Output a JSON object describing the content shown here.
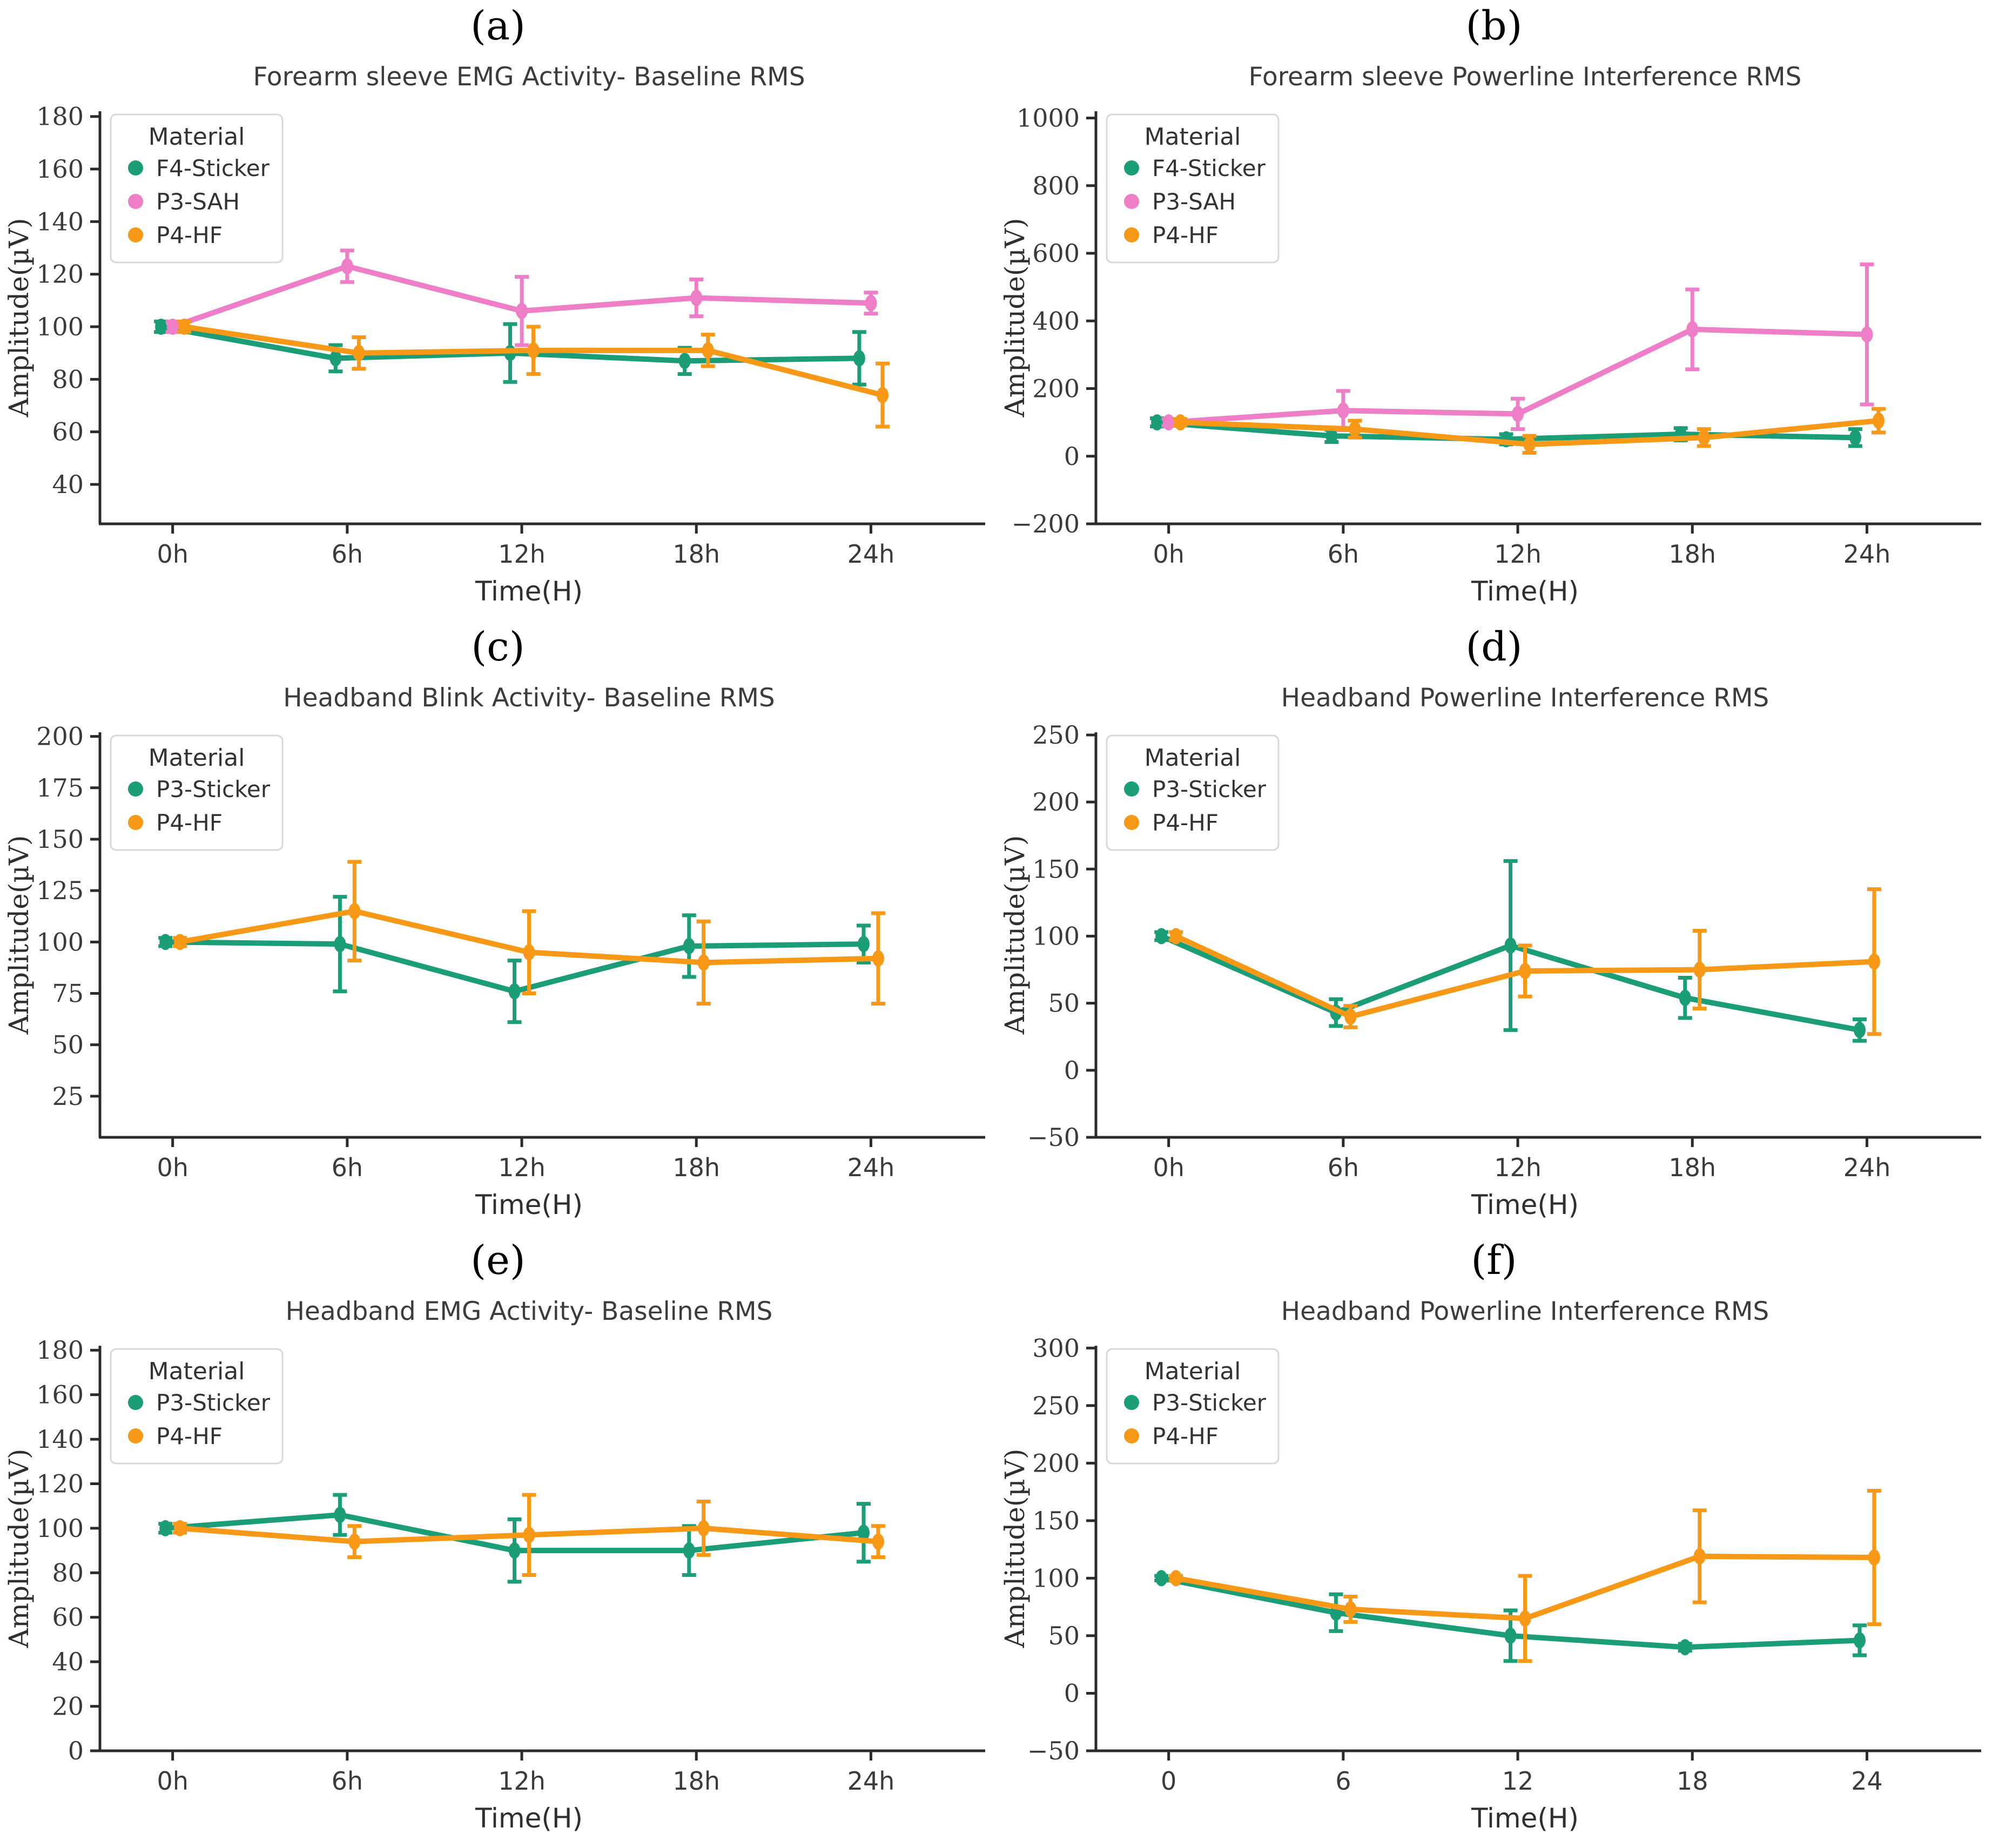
{
  "figure": {
    "background": "#ffffff",
    "axis_color": "#2b2b2b",
    "legend_border_color": "#d8d8d8",
    "legend_background": "#ffffff"
  },
  "chart_data": [
    {
      "panel_label": "(a)",
      "type": "line",
      "title": "Forearm sleeve EMG Activity- Baseline RMS",
      "xlabel": "Time(H)",
      "ylabel": "Amplitude(µV)",
      "legend_title": "Material",
      "legend_position": "upper-left",
      "grid": false,
      "x_hours": [
        0,
        6,
        12,
        18,
        24
      ],
      "xtick_labels": [
        "0h",
        "6h",
        "12h",
        "18h",
        "24h"
      ],
      "yticks": [
        40,
        60,
        80,
        100,
        120,
        140,
        160,
        180
      ],
      "ylim": [
        25,
        182
      ],
      "xlim": [
        -2.5,
        27
      ],
      "series": [
        {
          "name": "F4-Sticker",
          "color": "#1b9e77",
          "dodge": -0.4,
          "values": [
            100,
            88,
            90,
            87,
            88
          ],
          "errors": [
            2,
            5,
            11,
            5,
            10
          ]
        },
        {
          "name": "P3-SAH",
          "color": "#ee7ec7",
          "dodge": 0,
          "values": [
            100,
            123,
            106,
            111,
            109
          ],
          "errors": [
            2,
            6,
            13,
            7,
            4
          ]
        },
        {
          "name": "P4-HF",
          "color": "#f79817",
          "dodge": 0.4,
          "values": [
            100,
            90,
            91,
            91,
            74
          ],
          "errors": [
            2,
            6,
            9,
            6,
            12
          ]
        }
      ]
    },
    {
      "panel_label": "(b)",
      "type": "line",
      "title": "Forearm sleeve Powerline Interference RMS",
      "xlabel": "Time(H)",
      "ylabel": "Amplitude(µV)",
      "legend_title": "Material",
      "legend_position": "upper-left",
      "grid": false,
      "x_hours": [
        0,
        6,
        12,
        18,
        24
      ],
      "xtick_labels": [
        "0h",
        "6h",
        "12h",
        "18h",
        "24h"
      ],
      "yticks": [
        -200,
        0,
        200,
        400,
        600,
        800,
        1000
      ],
      "ylim": [
        -200,
        1020
      ],
      "xlim": [
        -2.5,
        27
      ],
      "series": [
        {
          "name": "F4-Sticker",
          "color": "#1b9e77",
          "dodge": -0.4,
          "values": [
            100,
            60,
            50,
            65,
            55
          ],
          "errors": [
            12,
            18,
            15,
            18,
            25
          ]
        },
        {
          "name": "P3-SAH",
          "color": "#ee7ec7",
          "dodge": 0,
          "values": [
            100,
            135,
            125,
            375,
            360
          ],
          "errors": [
            10,
            58,
            45,
            118,
            207
          ]
        },
        {
          "name": "P4-HF",
          "color": "#f79817",
          "dodge": 0.4,
          "values": [
            100,
            80,
            35,
            55,
            105
          ],
          "errors": [
            10,
            25,
            25,
            25,
            35
          ]
        }
      ]
    },
    {
      "panel_label": "(c)",
      "type": "line",
      "title": "Headband Blink Activity- Baseline RMS",
      "xlabel": "Time(H)",
      "ylabel": "Amplitude(µV)",
      "legend_title": "Material",
      "legend_position": "upper-left",
      "grid": false,
      "x_hours": [
        0,
        6,
        12,
        18,
        24
      ],
      "xtick_labels": [
        "0h",
        "6h",
        "12h",
        "18h",
        "24h"
      ],
      "yticks": [
        25,
        50,
        75,
        100,
        125,
        150,
        175,
        200
      ],
      "ylim": [
        5,
        202
      ],
      "xlim": [
        -2.5,
        27
      ],
      "series": [
        {
          "name": "P3-Sticker",
          "color": "#1b9e77",
          "dodge": -0.25,
          "values": [
            100,
            99,
            76,
            98,
            99
          ],
          "errors": [
            2,
            23,
            15,
            15,
            9
          ]
        },
        {
          "name": "P4-HF",
          "color": "#f79817",
          "dodge": 0.25,
          "values": [
            100,
            115,
            95,
            90,
            92
          ],
          "errors": [
            2,
            24,
            20,
            20,
            22
          ]
        }
      ]
    },
    {
      "panel_label": "(d)",
      "type": "line",
      "title": "Headband Powerline Interference RMS",
      "xlabel": "Time(H)",
      "ylabel": "Amplitude(µV)",
      "legend_title": "Material",
      "legend_position": "upper-left",
      "grid": false,
      "x_hours": [
        0,
        6,
        12,
        18,
        24
      ],
      "xtick_labels": [
        "0h",
        "6h",
        "12h",
        "18h",
        "24h"
      ],
      "yticks": [
        -50,
        0,
        50,
        100,
        150,
        200,
        250
      ],
      "ylim": [
        -50,
        252
      ],
      "xlim": [
        -2.5,
        27
      ],
      "series": [
        {
          "name": "P3-Sticker",
          "color": "#1b9e77",
          "dodge": -0.25,
          "values": [
            100,
            43,
            93,
            54,
            30
          ],
          "errors": [
            3,
            10,
            63,
            15,
            8
          ]
        },
        {
          "name": "P4-HF",
          "color": "#f79817",
          "dodge": 0.25,
          "values": [
            100,
            40,
            74,
            75,
            81
          ],
          "errors": [
            3,
            8,
            19,
            29,
            54
          ]
        }
      ]
    },
    {
      "panel_label": "(e)",
      "type": "line",
      "title": "Headband EMG Activity- Baseline RMS",
      "xlabel": "Time(H)",
      "ylabel": "Amplitude(µV)",
      "legend_title": "Material",
      "legend_position": "upper-left",
      "grid": false,
      "x_hours": [
        0,
        6,
        12,
        18,
        24
      ],
      "xtick_labels": [
        "0h",
        "6h",
        "12h",
        "18h",
        "24h"
      ],
      "yticks": [
        0,
        20,
        40,
        60,
        80,
        100,
        120,
        140,
        160,
        180
      ],
      "ylim": [
        0,
        182
      ],
      "xlim": [
        -2.5,
        27
      ],
      "series": [
        {
          "name": "P3-Sticker",
          "color": "#1b9e77",
          "dodge": -0.25,
          "values": [
            100,
            106,
            90,
            90,
            98
          ],
          "errors": [
            2,
            9,
            14,
            11,
            13
          ]
        },
        {
          "name": "P4-HF",
          "color": "#f79817",
          "dodge": 0.25,
          "values": [
            100,
            94,
            97,
            100,
            94
          ],
          "errors": [
            2,
            7,
            18,
            12,
            7
          ]
        }
      ]
    },
    {
      "panel_label": "(f)",
      "type": "line",
      "title": "Headband Powerline Interference RMS",
      "xlabel": "Time(H)",
      "ylabel": "Amplitude(µV)",
      "legend_title": "Material",
      "legend_position": "upper-left",
      "grid": false,
      "x_hours": [
        0,
        6,
        12,
        18,
        24
      ],
      "xtick_labels": [
        "0",
        "6",
        "12",
        "18",
        "24"
      ],
      "yticks": [
        -50,
        0,
        50,
        100,
        150,
        200,
        250,
        300
      ],
      "ylim": [
        -50,
        302
      ],
      "xlim": [
        -2.5,
        27
      ],
      "series": [
        {
          "name": "P3-Sticker",
          "color": "#1b9e77",
          "dodge": -0.25,
          "values": [
            100,
            70,
            50,
            40,
            46
          ],
          "errors": [
            2,
            16,
            22,
            3,
            13
          ]
        },
        {
          "name": "P4-HF",
          "color": "#f79817",
          "dodge": 0.25,
          "values": [
            100,
            73,
            65,
            119,
            118
          ],
          "errors": [
            2,
            11,
            37,
            40,
            58
          ]
        }
      ]
    }
  ]
}
